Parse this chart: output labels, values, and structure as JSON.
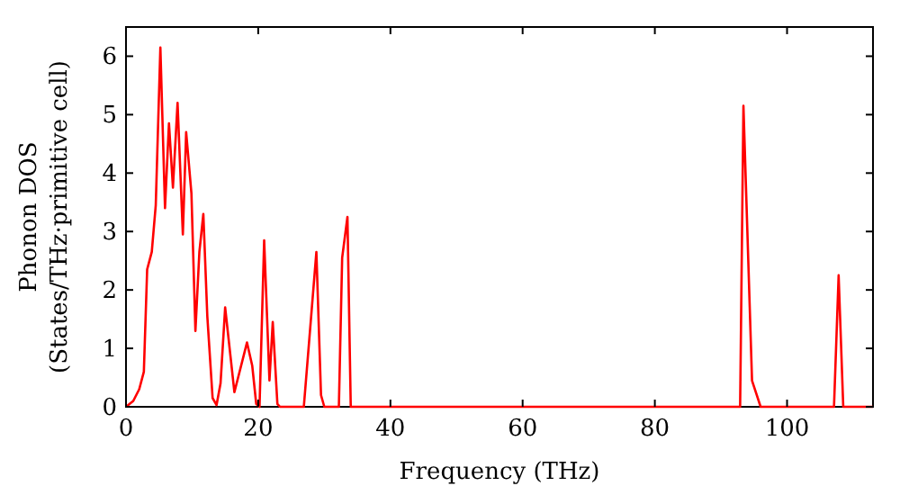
{
  "chart_data": {
    "type": "line",
    "xlabel": "Frequency (THz)",
    "ylabel": "Phonon DOS\n(States/THz·primitive cell)",
    "xlim": [
      0,
      113
    ],
    "ylim": [
      0,
      6.5
    ],
    "xticks": [
      0,
      20,
      40,
      60,
      80,
      100
    ],
    "yticks": [
      0,
      1,
      2,
      3,
      4,
      5,
      6
    ],
    "grid": false,
    "marker": "none",
    "line_style": "solid",
    "series": [
      {
        "color": "#ff0000",
        "x": [
          0,
          1.1,
          2,
          2.7,
          3.2,
          3.9,
          4.5,
          5.2,
          5.9,
          6.5,
          7.1,
          7.8,
          8.6,
          9.1,
          9.9,
          10.5,
          11.1,
          11.7,
          12.3,
          13.1,
          13.7,
          14.3,
          15,
          16.4,
          18.3,
          19.1,
          19.7,
          20.2,
          20.9,
          21.7,
          22.2,
          22.9,
          23.3,
          26.9,
          28.8,
          29.5,
          30,
          32.2,
          32.7,
          33.5,
          34,
          92.9,
          93.4,
          94.7,
          96,
          107.1,
          107.8,
          108.5,
          113
        ],
        "values": [
          0,
          0.1,
          0.3,
          0.6,
          2.35,
          2.65,
          3.45,
          6.15,
          3.4,
          4.85,
          3.75,
          5.2,
          2.95,
          4.7,
          3.65,
          1.3,
          2.65,
          3.3,
          1.55,
          0.15,
          0.03,
          0.4,
          1.7,
          0.25,
          1.1,
          0.7,
          0.05,
          0,
          2.85,
          0.45,
          1.45,
          0.05,
          0,
          0,
          2.65,
          0.2,
          0,
          0,
          2.55,
          3.25,
          0,
          0,
          5.15,
          0.45,
          0,
          0,
          2.25,
          0,
          0
        ]
      }
    ]
  }
}
